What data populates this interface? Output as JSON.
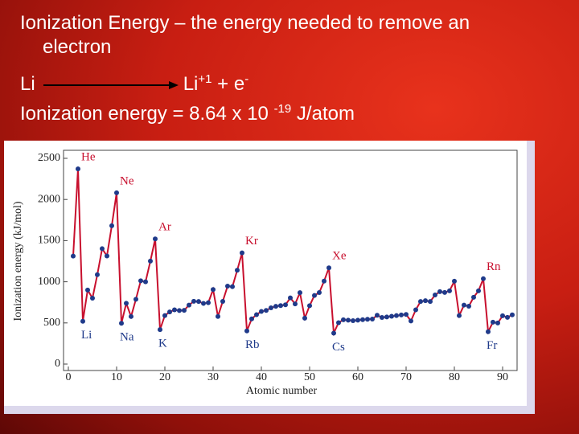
{
  "slide": {
    "title": "Ionization Energy – the energy needed to remove an electron",
    "equation": {
      "reactant": "Li",
      "product": "Li",
      "product_charge": "+1",
      "plus": "+ e",
      "electron_charge": "-"
    },
    "result": {
      "text": "Ionization energy = 8.64 x 10",
      "exponent": "-19",
      "unit": "J/atom"
    }
  },
  "chart_data": {
    "type": "line",
    "x_label": "Atomic number",
    "y_label": "Ionization energy (kJ/mol)",
    "x": [
      1,
      2,
      3,
      4,
      5,
      6,
      7,
      8,
      9,
      10,
      11,
      12,
      13,
      14,
      15,
      16,
      17,
      18,
      19,
      20,
      21,
      22,
      23,
      24,
      25,
      26,
      27,
      28,
      29,
      30,
      31,
      32,
      33,
      34,
      35,
      36,
      37,
      38,
      39,
      40,
      41,
      42,
      43,
      44,
      45,
      46,
      47,
      48,
      49,
      50,
      51,
      52,
      53,
      54,
      55,
      56,
      57,
      58,
      59,
      60,
      61,
      62,
      63,
      64,
      65,
      66,
      67,
      68,
      69,
      70,
      71,
      72,
      73,
      74,
      75,
      76,
      77,
      78,
      79,
      80,
      81,
      82,
      83,
      84,
      85,
      86,
      87,
      88,
      89,
      90,
      91,
      92
    ],
    "values": [
      1312,
      2372,
      520,
      900,
      801,
      1086,
      1402,
      1314,
      1681,
      2081,
      496,
      738,
      578,
      787,
      1012,
      1000,
      1251,
      1521,
      419,
      590,
      633,
      659,
      651,
      653,
      717,
      763,
      760,
      737,
      746,
      906,
      579,
      762,
      947,
      941,
      1140,
      1351,
      403,
      549,
      600,
      640,
      652,
      684,
      702,
      710,
      720,
      804,
      731,
      868,
      558,
      709,
      834,
      869,
      1008,
      1170,
      376,
      503,
      538,
      534,
      527,
      533,
      540,
      545,
      547,
      593,
      566,
      573,
      581,
      589,
      597,
      603,
      524,
      659,
      761,
      770,
      760,
      840,
      880,
      870,
      890,
      1007,
      589,
      716,
      703,
      812,
      890,
      1037,
      393,
      509,
      499,
      587,
      568,
      598
    ],
    "color": "#c8102e",
    "marker_color": "#1f3a8a",
    "annotations": [
      {
        "text": "He",
        "x": 2
      },
      {
        "text": "Ne",
        "x": 10
      },
      {
        "text": "Ar",
        "x": 18
      },
      {
        "text": "Kr",
        "x": 36
      },
      {
        "text": "Xe",
        "x": 54
      },
      {
        "text": "Rn",
        "x": 86
      },
      {
        "text": "Li",
        "x": 3
      },
      {
        "text": "Na",
        "x": 11
      },
      {
        "text": "K",
        "x": 19
      },
      {
        "text": "Rb",
        "x": 37
      },
      {
        "text": "Cs",
        "x": 55
      },
      {
        "text": "Fr",
        "x": 87
      }
    ],
    "xlim": [
      -1,
      93
    ],
    "ylim": [
      0,
      2500
    ],
    "xticks": [
      0,
      10,
      20,
      30,
      40,
      50,
      60,
      70,
      80,
      90
    ],
    "yticks": [
      0,
      500,
      1000,
      1500,
      2000,
      2500
    ]
  }
}
